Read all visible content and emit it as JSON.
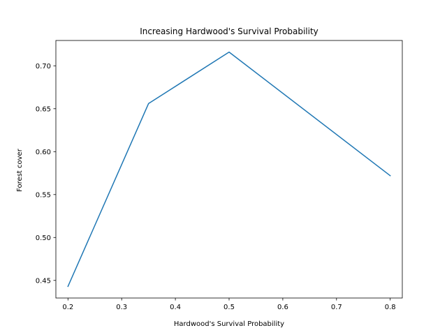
{
  "chart_data": {
    "type": "line",
    "title": "Increasing Hardwood's Survival Probability",
    "xlabel": "Hardwood's Survival Probability",
    "ylabel": "Forest cover",
    "xlim": [
      0.1775,
      0.8225
    ],
    "ylim": [
      0.4295,
      0.7295
    ],
    "x_ticks": [
      0.2,
      0.3,
      0.4,
      0.5,
      0.6,
      0.7,
      0.8
    ],
    "x_tick_labels": [
      "0.2",
      "0.3",
      "0.4",
      "0.5",
      "0.6",
      "0.7",
      "0.8"
    ],
    "y_ticks": [
      0.45,
      0.5,
      0.55,
      0.6,
      0.65,
      0.7
    ],
    "y_tick_labels": [
      "0.45",
      "0.50",
      "0.55",
      "0.60",
      "0.65",
      "0.70"
    ],
    "grid": false,
    "series": [
      {
        "color": "#1f77b4",
        "x": [
          0.2,
          0.35,
          0.5,
          0.8
        ],
        "y": [
          0.443,
          0.656,
          0.716,
          0.572
        ]
      }
    ]
  }
}
